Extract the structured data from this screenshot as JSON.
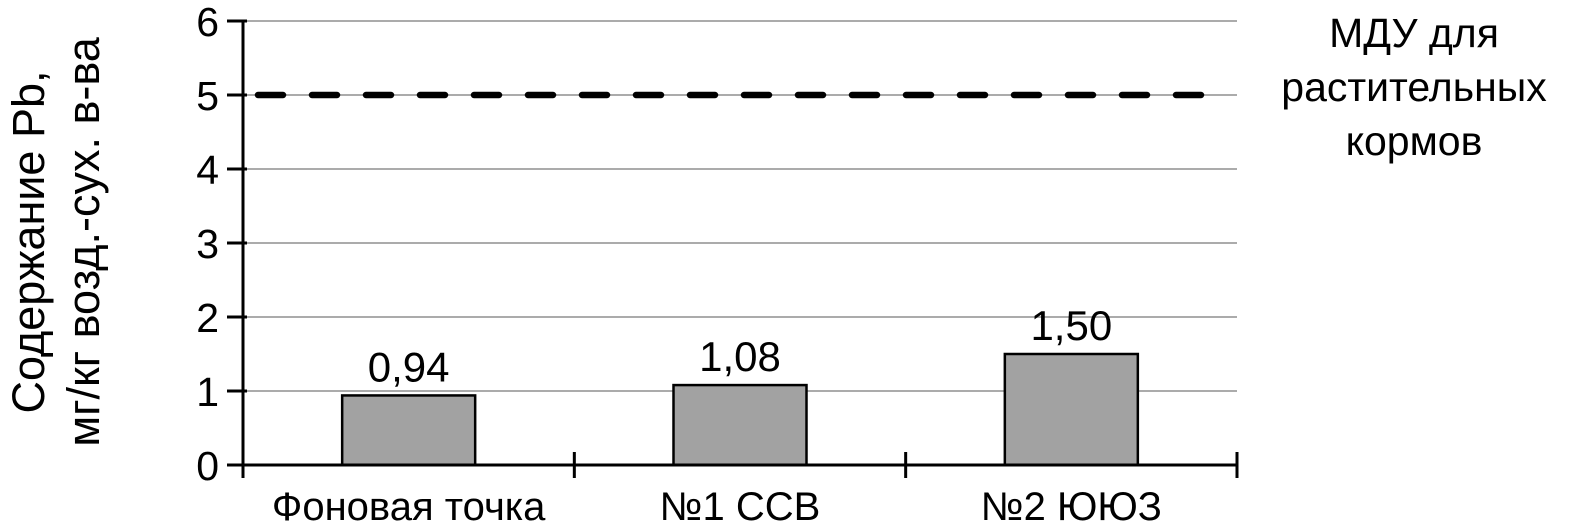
{
  "chart_data": {
    "type": "bar",
    "title": "",
    "categories": [
      "Фоновая точка",
      "№1 ССВ",
      "№2 ЮЮЗ"
    ],
    "values": [
      0.94,
      1.08,
      1.5
    ],
    "value_labels": [
      "0,94",
      "1,08",
      "1,50"
    ],
    "ylabel_lines": {
      "line1": "Содержание Pb,",
      "line2": "мг/кг возд.-сух. в-ва"
    },
    "xlabel": "",
    "ylim": [
      0,
      6
    ],
    "y_ticks": [
      0,
      1,
      2,
      3,
      4,
      5,
      6
    ],
    "grid": true,
    "legend": false,
    "reference_line": {
      "value": 5,
      "style": "dashed",
      "label": "МДУ для растительных кормов",
      "label_lines": {
        "line1": "МДУ для",
        "line2": "растительных",
        "line3": "кормов"
      }
    },
    "colors": {
      "bar_fill": "#a2a2a2",
      "bar_border": "#000000",
      "gridline": "#ababab",
      "axis": "#000000",
      "reference_line": "#000000",
      "text": "#000000",
      "background": "#ffffff"
    }
  }
}
